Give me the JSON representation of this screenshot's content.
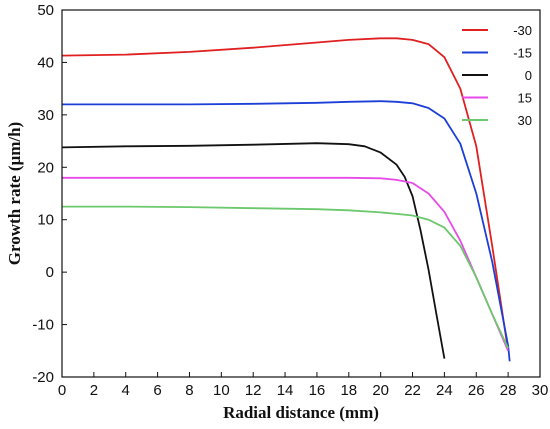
{
  "chart_data": {
    "type": "line",
    "title": "",
    "xlabel": "Radial distance (mm)",
    "ylabel": "Growth rate (μm/h)",
    "xlim": [
      0,
      30
    ],
    "ylim": [
      -20,
      50
    ],
    "xticks": [
      0,
      2,
      4,
      6,
      8,
      10,
      12,
      14,
      16,
      18,
      20,
      22,
      24,
      26,
      28,
      30
    ],
    "yticks": [
      -20,
      -10,
      0,
      10,
      20,
      30,
      40,
      50
    ],
    "grid": false,
    "legend_position": "top-right",
    "series": [
      {
        "name": "-30",
        "color": "#e02020",
        "x": [
          0,
          4,
          8,
          12,
          16,
          18,
          20,
          21,
          22,
          23,
          24,
          25,
          26,
          27,
          28
        ],
        "y": [
          41.3,
          41.5,
          42,
          42.8,
          43.8,
          44.3,
          44.6,
          44.6,
          44.3,
          43.5,
          41,
          35,
          24,
          5,
          -15
        ]
      },
      {
        "name": "-15",
        "color": "#1c3fd8",
        "x": [
          0,
          4,
          8,
          12,
          16,
          18,
          20,
          21,
          22,
          23,
          24,
          25,
          26,
          27,
          28,
          28.1
        ],
        "y": [
          32,
          32,
          32,
          32.1,
          32.3,
          32.5,
          32.6,
          32.5,
          32.2,
          31.3,
          29.3,
          24.5,
          15,
          2,
          -14,
          -17
        ]
      },
      {
        "name": "0",
        "color": "#111111",
        "x": [
          0,
          4,
          8,
          12,
          16,
          18,
          19,
          20,
          21,
          21.5,
          22,
          22.5,
          23,
          23.5,
          24
        ],
        "y": [
          23.8,
          24,
          24.1,
          24.3,
          24.6,
          24.4,
          24,
          22.8,
          20.5,
          18.2,
          14.5,
          8,
          0.5,
          -8,
          -16.5
        ]
      },
      {
        "name": "15",
        "color": "#e84ae8",
        "x": [
          0,
          4,
          8,
          12,
          16,
          18,
          20,
          21,
          22,
          23,
          24,
          25,
          26,
          27,
          28
        ],
        "y": [
          18,
          18,
          18,
          18,
          18,
          18,
          17.9,
          17.6,
          17,
          15,
          11.5,
          6,
          -1,
          -8,
          -15
        ]
      },
      {
        "name": "30",
        "color": "#6cc86c",
        "x": [
          0,
          4,
          8,
          12,
          16,
          18,
          20,
          21,
          22,
          23,
          24,
          25,
          26,
          27,
          28
        ],
        "y": [
          12.5,
          12.5,
          12.4,
          12.2,
          12,
          11.8,
          11.4,
          11.1,
          10.8,
          10,
          8.5,
          5,
          -1,
          -8,
          -14.5
        ]
      }
    ]
  }
}
